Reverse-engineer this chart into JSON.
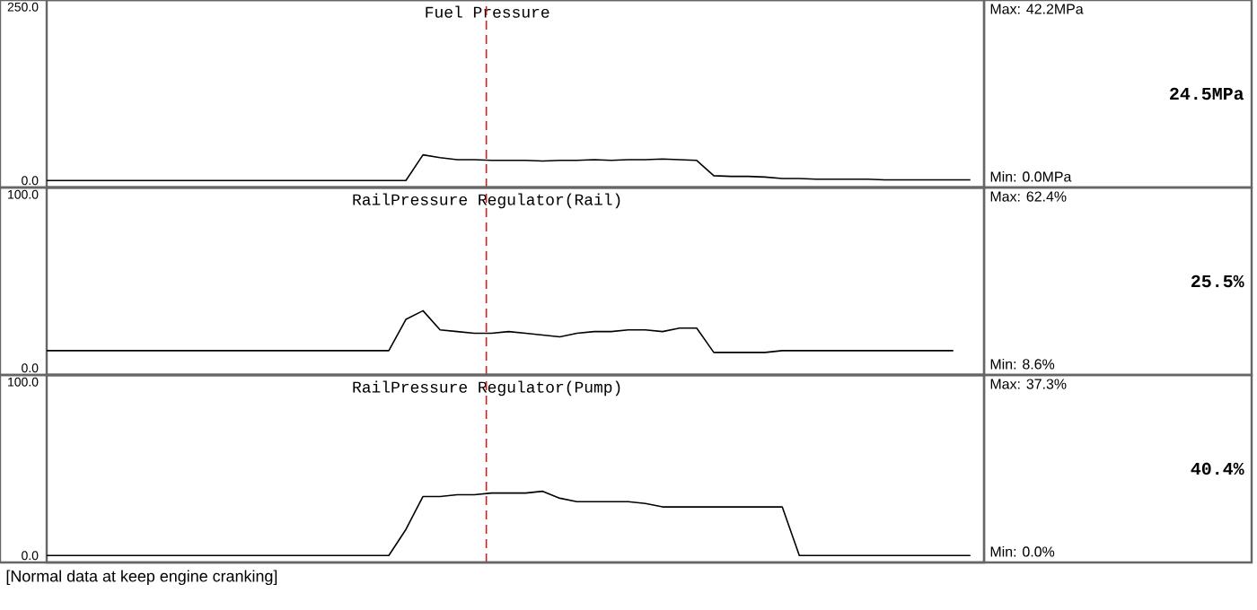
{
  "chart_data": [
    {
      "type": "line",
      "title": "Fuel Pressure",
      "categories": [
        null,
        null,
        null,
        null,
        null,
        null,
        null,
        null,
        null,
        null,
        null,
        null,
        null,
        null,
        null,
        null,
        null,
        null,
        null,
        null,
        null,
        null,
        null,
        null,
        null,
        null,
        null,
        null,
        null,
        null,
        null,
        null,
        null,
        null,
        null,
        null,
        null,
        null,
        null,
        null,
        null,
        null,
        null,
        null,
        null,
        null,
        null,
        null,
        null,
        null,
        null,
        null,
        null,
        null,
        null
      ],
      "series": [
        {
          "color": "#000000",
          "values": [
            0,
            0,
            0,
            0,
            0,
            0,
            0,
            0,
            0,
            0,
            0,
            0,
            0,
            0,
            0,
            0,
            0,
            0,
            0,
            0,
            0,
            0,
            37,
            33,
            30,
            30,
            29,
            29,
            29,
            28,
            29,
            29,
            30,
            29,
            30,
            30,
            31,
            30,
            29,
            7,
            6,
            6,
            5,
            3,
            3,
            2,
            2,
            2,
            2,
            1,
            1,
            1,
            1,
            1,
            1
          ]
        }
      ],
      "ylim": [
        -10,
        260
      ],
      "yticks": [
        {
          "value": 0,
          "label": "0.0"
        },
        {
          "value": 250,
          "label": "250.0"
        }
      ],
      "annotations": [
        "Max: 42.2MPa",
        "24.5MPa",
        "Min: 0.0MPa"
      ]
    },
    {
      "type": "line",
      "title": "RailPressure Regulator(Rail)",
      "categories": [
        null,
        null,
        null,
        null,
        null,
        null,
        null,
        null,
        null,
        null,
        null,
        null,
        null,
        null,
        null,
        null,
        null,
        null,
        null,
        null,
        null,
        null,
        null,
        null,
        null,
        null,
        null,
        null,
        null,
        null,
        null,
        null,
        null,
        null,
        null,
        null,
        null,
        null,
        null,
        null,
        null,
        null,
        null,
        null,
        null,
        null,
        null,
        null,
        null,
        null,
        null,
        null,
        null,
        null,
        null
      ],
      "series": [
        {
          "color": "#000000",
          "values": [
            10,
            10,
            10,
            10,
            10,
            10,
            10,
            10,
            10,
            10,
            10,
            10,
            10,
            10,
            10,
            10,
            10,
            10,
            10,
            10,
            10,
            28,
            33,
            22,
            21,
            20,
            20,
            21,
            20,
            19,
            18,
            20,
            21,
            21,
            22,
            22,
            21,
            23,
            23,
            9,
            9,
            9,
            9,
            10,
            10,
            10,
            10,
            10,
            10,
            10,
            10,
            10,
            10,
            10,
            null
          ]
        }
      ],
      "ylim": [
        -4,
        104
      ],
      "yticks": [
        {
          "value": 0,
          "label": "0.0"
        },
        {
          "value": 100,
          "label": "100.0"
        }
      ],
      "annotations": [
        "Max: 62.4%",
        "25.5%",
        "Min: 8.6%"
      ]
    },
    {
      "type": "line",
      "title": "RailPressure Regulator(Pump)",
      "categories": [
        null,
        null,
        null,
        null,
        null,
        null,
        null,
        null,
        null,
        null,
        null,
        null,
        null,
        null,
        null,
        null,
        null,
        null,
        null,
        null,
        null,
        null,
        null,
        null,
        null,
        null,
        null,
        null,
        null,
        null,
        null,
        null,
        null,
        null,
        null,
        null,
        null,
        null,
        null,
        null,
        null,
        null,
        null,
        null,
        null,
        null,
        null,
        null,
        null,
        null,
        null,
        null,
        null,
        null,
        null
      ],
      "series": [
        {
          "color": "#000000",
          "values": [
            0,
            0,
            0,
            0,
            0,
            0,
            0,
            0,
            0,
            0,
            0,
            0,
            0,
            0,
            0,
            0,
            0,
            0,
            0,
            0,
            0,
            15,
            34,
            34,
            35,
            35,
            36,
            36,
            36,
            37,
            33,
            31,
            31,
            31,
            31,
            30,
            28,
            28,
            28,
            28,
            28,
            28,
            28,
            28,
            0,
            0,
            0,
            0,
            0,
            0,
            0,
            0,
            0,
            0,
            0
          ]
        }
      ],
      "ylim": [
        -4,
        104
      ],
      "yticks": [
        {
          "value": 0,
          "label": "0.0"
        },
        {
          "value": 100,
          "label": "100.0"
        }
      ],
      "annotations": [
        "Max: 37.3%",
        "40.4%",
        "Min: 0.0%",
        "[Normal data at keep engine cranking]"
      ]
    }
  ]
}
